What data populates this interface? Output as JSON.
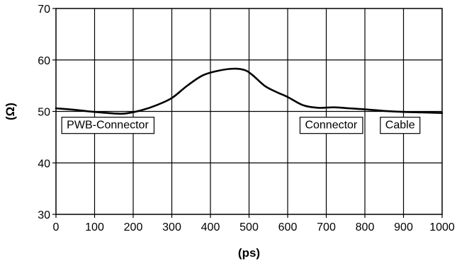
{
  "chart_data": {
    "type": "line",
    "xlabel": "(ps)",
    "ylabel": "(Ω)",
    "xlim": [
      0,
      1000
    ],
    "ylim": [
      30,
      70
    ],
    "grid": true,
    "x_ticks": [
      "0",
      "100",
      "200",
      "300",
      "400",
      "500",
      "600",
      "700",
      "800",
      "900",
      "1000"
    ],
    "y_ticks": [
      "30",
      "40",
      "50",
      "60",
      "70"
    ],
    "series": [
      {
        "x": [
          0,
          50,
          100,
          150,
          180,
          220,
          260,
          300,
          340,
          380,
          420,
          460,
          490,
          510,
          540,
          570,
          600,
          640,
          680,
          720,
          760,
          800,
          850,
          900,
          950,
          1000
        ],
        "y": [
          50.6,
          50.3,
          49.9,
          49.6,
          49.6,
          50.2,
          51.2,
          52.6,
          55.0,
          57.0,
          57.9,
          58.3,
          58.0,
          57.0,
          55.0,
          53.8,
          52.8,
          51.2,
          50.7,
          50.8,
          50.6,
          50.4,
          50.1,
          49.9,
          49.8,
          49.7
        ]
      }
    ],
    "annotations": [
      {
        "text": "PWB-Connector",
        "x": 15,
        "y": 47.5
      },
      {
        "text": "Connector",
        "x": 632,
        "y": 47.5
      },
      {
        "text": "Cable",
        "x": 840,
        "y": 47.5
      }
    ]
  }
}
